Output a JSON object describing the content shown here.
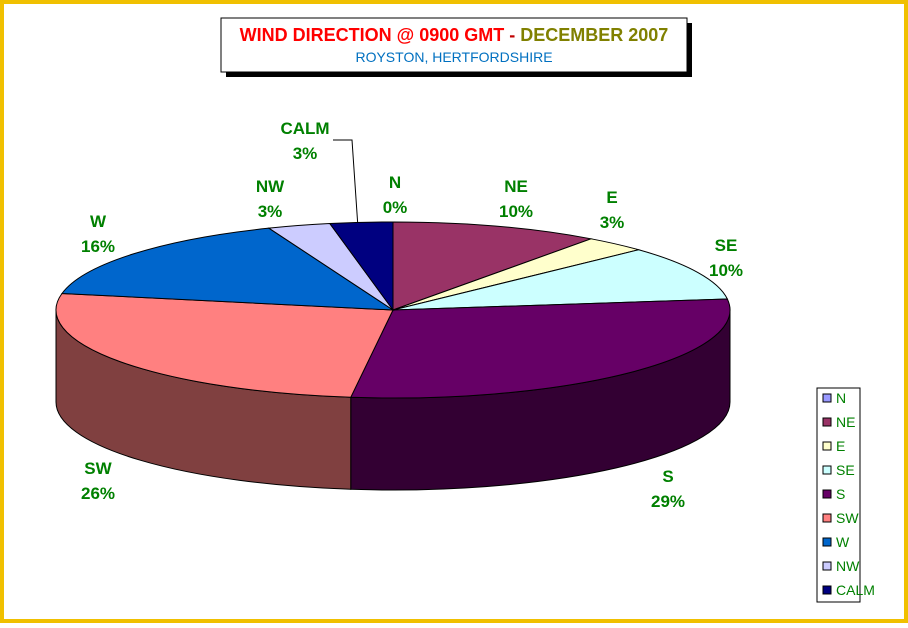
{
  "chart_data": {
    "type": "pie3d",
    "title": [
      "WIND DIRECTION @ 0900 GMT",
      "-",
      "DECEMBER 2007"
    ],
    "subtitle": "ROYSTON, HERTFORDSHIRE",
    "categories": [
      "N",
      "NE",
      "E",
      "SE",
      "S",
      "SW",
      "W",
      "NW",
      "CALM"
    ],
    "values": [
      0,
      10,
      3,
      10,
      29,
      26,
      16,
      3,
      3
    ],
    "value_labels": [
      "0%",
      "10%",
      "3%",
      "10%",
      "29%",
      "26%",
      "16%",
      "3%",
      "3%"
    ],
    "colors": [
      "#9999ff",
      "#993366",
      "#ffffcc",
      "#ccffff",
      "#660066",
      "#ff8080",
      "#0066cc",
      "#ccccff",
      "#000080"
    ],
    "legend": "right"
  }
}
